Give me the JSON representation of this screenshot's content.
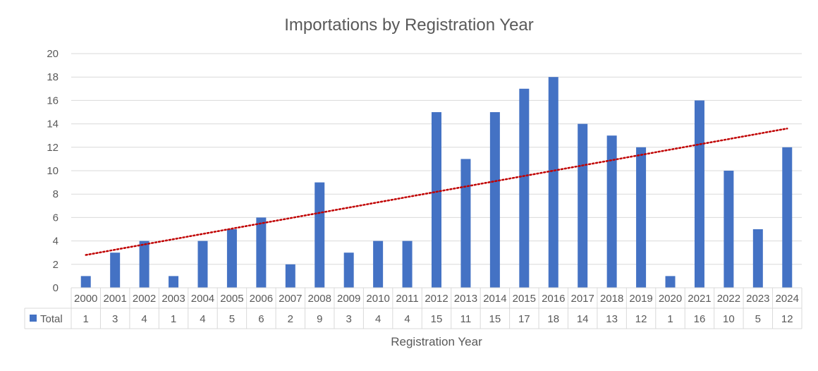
{
  "chart_data": {
    "type": "bar",
    "title": "Importations by Registration Year",
    "xlabel": "Registration Year",
    "ylabel": "",
    "ylim": [
      0,
      20
    ],
    "yticks": [
      0,
      2,
      4,
      6,
      8,
      10,
      12,
      14,
      16,
      18,
      20
    ],
    "grid": true,
    "legend_position": "data-table-left",
    "categories": [
      "2000",
      "2001",
      "2002",
      "2003",
      "2004",
      "2005",
      "2006",
      "2007",
      "2008",
      "2009",
      "2010",
      "2011",
      "2012",
      "2013",
      "2014",
      "2015",
      "2016",
      "2017",
      "2018",
      "2019",
      "2020",
      "2021",
      "2022",
      "2023",
      "2024"
    ],
    "series": [
      {
        "name": "Total",
        "color": "#4472c4",
        "values": [
          1,
          3,
          4,
          1,
          4,
          5,
          6,
          2,
          9,
          3,
          4,
          4,
          15,
          11,
          15,
          17,
          18,
          14,
          13,
          12,
          1,
          16,
          10,
          5,
          12
        ]
      }
    ],
    "trendline": {
      "type": "linear",
      "style": "dotted",
      "color": "#c00000",
      "start_value": 2.8,
      "end_value": 13.6
    }
  },
  "colors": {
    "bar": "#4472c4",
    "trendline": "#c00000",
    "grid": "#d9d9d9",
    "text": "#595959",
    "title": "#595959"
  }
}
